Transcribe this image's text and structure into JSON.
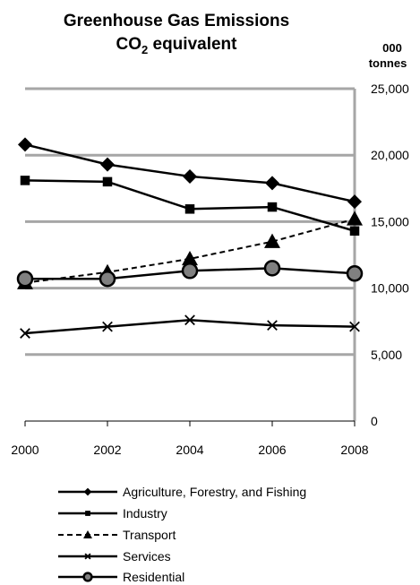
{
  "chart_data": {
    "type": "line",
    "title": "Greenhouse  Gas Emissions",
    "subtitle": {
      "prefix": "CO",
      "sub": "2",
      "suffix": " equivalent"
    },
    "ylabel_lines": [
      "000",
      "tonnes"
    ],
    "x": [
      2000,
      2002,
      2004,
      2006,
      2008
    ],
    "xtick_labels": [
      "2000",
      "2002",
      "2004",
      "2006",
      "2008"
    ],
    "ylim": [
      0,
      25000
    ],
    "ytick_labels": [
      "25,000",
      "20,000",
      "15,000",
      "10,000",
      "5,000",
      "0"
    ],
    "yticks": [
      25000,
      20000,
      15000,
      10000,
      5000,
      0
    ],
    "y_axis_side": "right",
    "grid": true,
    "legend_position": "bottom",
    "series": [
      {
        "name": "Agriculture, Forestry, and Fishing",
        "marker": "diamond",
        "line": "solid",
        "values": [
          20800,
          19300,
          18400,
          17900,
          16500
        ]
      },
      {
        "name": "Industry",
        "marker": "square",
        "line": "solid",
        "values": [
          18100,
          18000,
          15950,
          16100,
          14300
        ]
      },
      {
        "name": "Transport",
        "marker": "triangle",
        "line": "dashed",
        "values": [
          10400,
          11200,
          12200,
          13500,
          15200
        ]
      },
      {
        "name": "Services",
        "marker": "x",
        "line": "solid",
        "values": [
          6600,
          7100,
          7600,
          7200,
          7100
        ]
      },
      {
        "name": "Residential",
        "marker": "circle",
        "line": "solid",
        "values": [
          10700,
          10700,
          11300,
          11500,
          11100
        ]
      }
    ],
    "colors": {
      "line": "#000000",
      "grid": "#a6a6a6",
      "circle_fill": "#808080"
    }
  }
}
